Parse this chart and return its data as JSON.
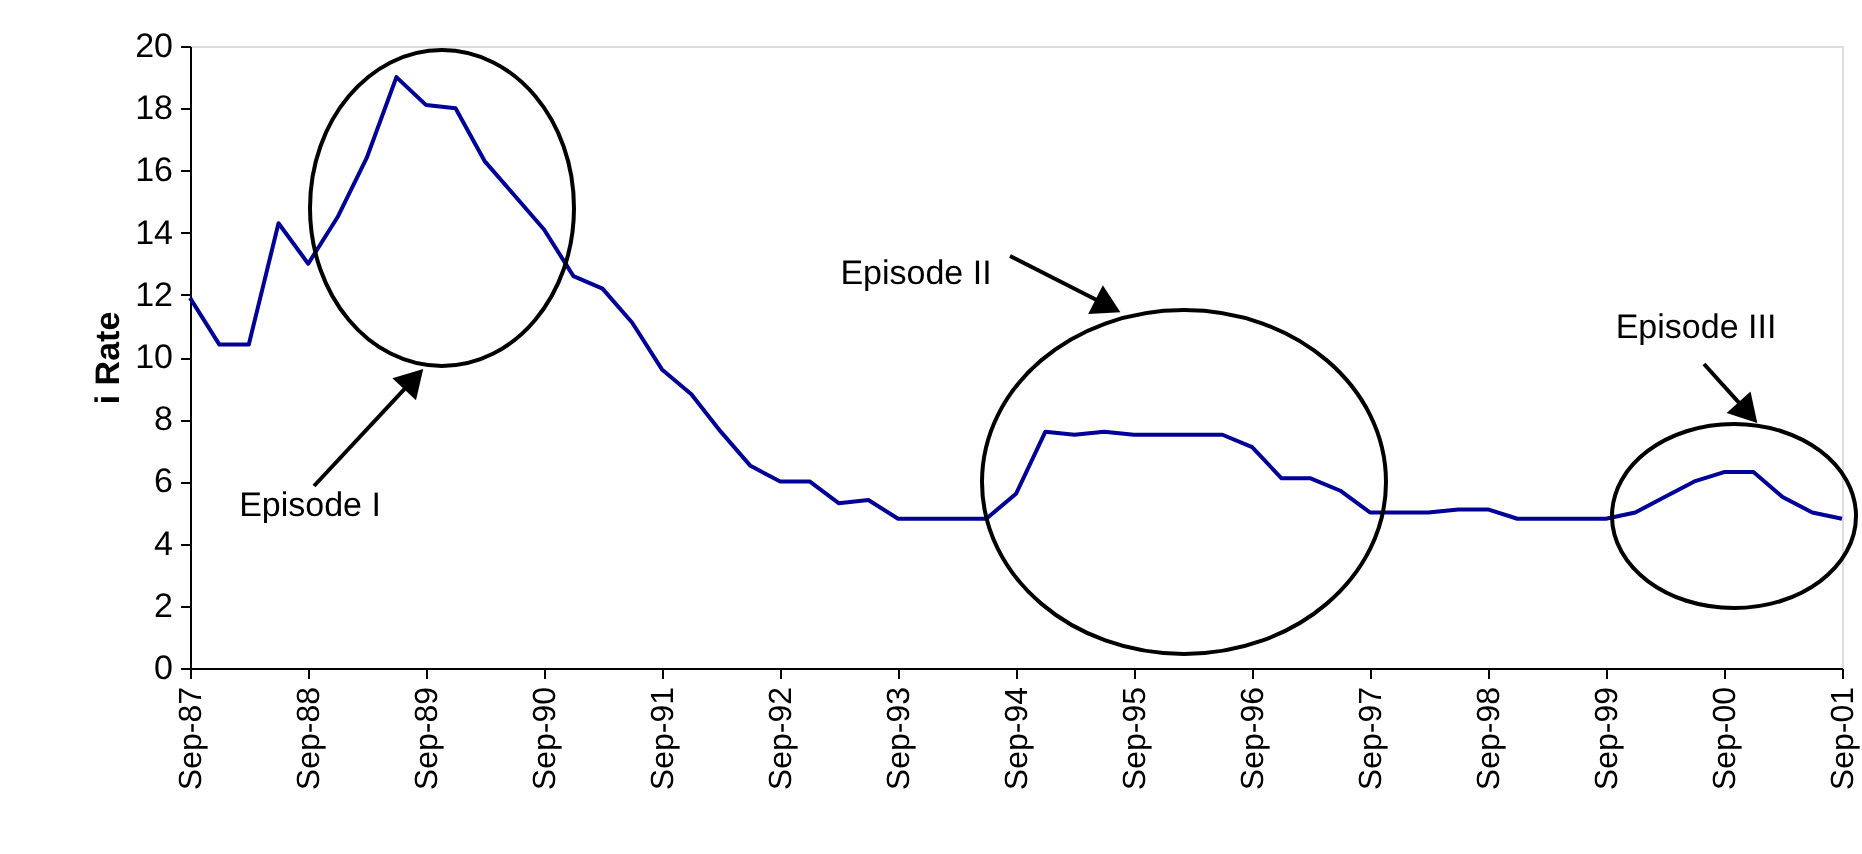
{
  "chart_data": {
    "type": "line",
    "ylabel": "i Rate",
    "x": [
      "1987-09",
      "1987-12",
      "1988-03",
      "1988-06",
      "1988-09",
      "1988-12",
      "1989-03",
      "1989-06",
      "1989-09",
      "1989-12",
      "1990-03",
      "1990-06",
      "1990-09",
      "1990-12",
      "1991-03",
      "1991-06",
      "1991-09",
      "1991-12",
      "1992-03",
      "1992-06",
      "1992-09",
      "1992-12",
      "1993-03",
      "1993-06",
      "1993-09",
      "1993-12",
      "1994-03",
      "1994-06",
      "1994-09",
      "1994-12",
      "1995-03",
      "1995-06",
      "1995-09",
      "1995-12",
      "1996-03",
      "1996-06",
      "1996-09",
      "1996-12",
      "1997-03",
      "1997-06",
      "1997-09",
      "1997-12",
      "1998-03",
      "1998-06",
      "1998-09",
      "1998-12",
      "1999-03",
      "1999-06",
      "1999-09",
      "1999-12",
      "2000-03",
      "2000-06",
      "2000-09",
      "2000-12",
      "2001-03",
      "2001-06",
      "2001-09"
    ],
    "series": [
      {
        "color": "#000099",
        "values": [
          11.9,
          10.4,
          10.4,
          14.3,
          13.0,
          14.5,
          16.4,
          19.0,
          18.1,
          18.0,
          16.3,
          15.2,
          14.1,
          12.6,
          12.2,
          11.1,
          9.6,
          8.8,
          7.6,
          6.5,
          6.0,
          6.0,
          5.3,
          5.4,
          4.8,
          4.8,
          4.8,
          4.8,
          5.6,
          7.6,
          7.5,
          7.6,
          7.5,
          7.5,
          7.5,
          7.5,
          7.1,
          6.1,
          6.1,
          5.7,
          5.0,
          5.0,
          5.0,
          5.1,
          5.1,
          4.8,
          4.8,
          4.8,
          4.8,
          5.0,
          5.5,
          6.0,
          6.3,
          6.3,
          5.5,
          5.0,
          4.8
        ]
      }
    ],
    "xlim": [
      "1987-09",
      "2001-09"
    ],
    "xticks": [
      {
        "value": "1987-09",
        "label": "Sep-87"
      },
      {
        "value": "1988-09",
        "label": "Sep-88"
      },
      {
        "value": "1989-09",
        "label": "Sep-89"
      },
      {
        "value": "1990-09",
        "label": "Sep-90"
      },
      {
        "value": "1991-09",
        "label": "Sep-91"
      },
      {
        "value": "1992-09",
        "label": "Sep-92"
      },
      {
        "value": "1993-09",
        "label": "Sep-93"
      },
      {
        "value": "1994-09",
        "label": "Sep-94"
      },
      {
        "value": "1995-09",
        "label": "Sep-95"
      },
      {
        "value": "1996-09",
        "label": "Sep-96"
      },
      {
        "value": "1997-09",
        "label": "Sep-97"
      },
      {
        "value": "1998-09",
        "label": "Sep-98"
      },
      {
        "value": "1999-09",
        "label": "Sep-99"
      },
      {
        "value": "2000-09",
        "label": "Sep-00"
      },
      {
        "value": "2001-09",
        "label": "Sep-01"
      }
    ],
    "ylim": [
      0,
      20
    ],
    "yticks": [
      0,
      2,
      4,
      6,
      8,
      10,
      12,
      14,
      16,
      18,
      20
    ],
    "annotations": [
      "Episode I",
      "Episode II",
      "Episode III"
    ],
    "grid": false,
    "marker": "none",
    "line_style": "solid"
  }
}
